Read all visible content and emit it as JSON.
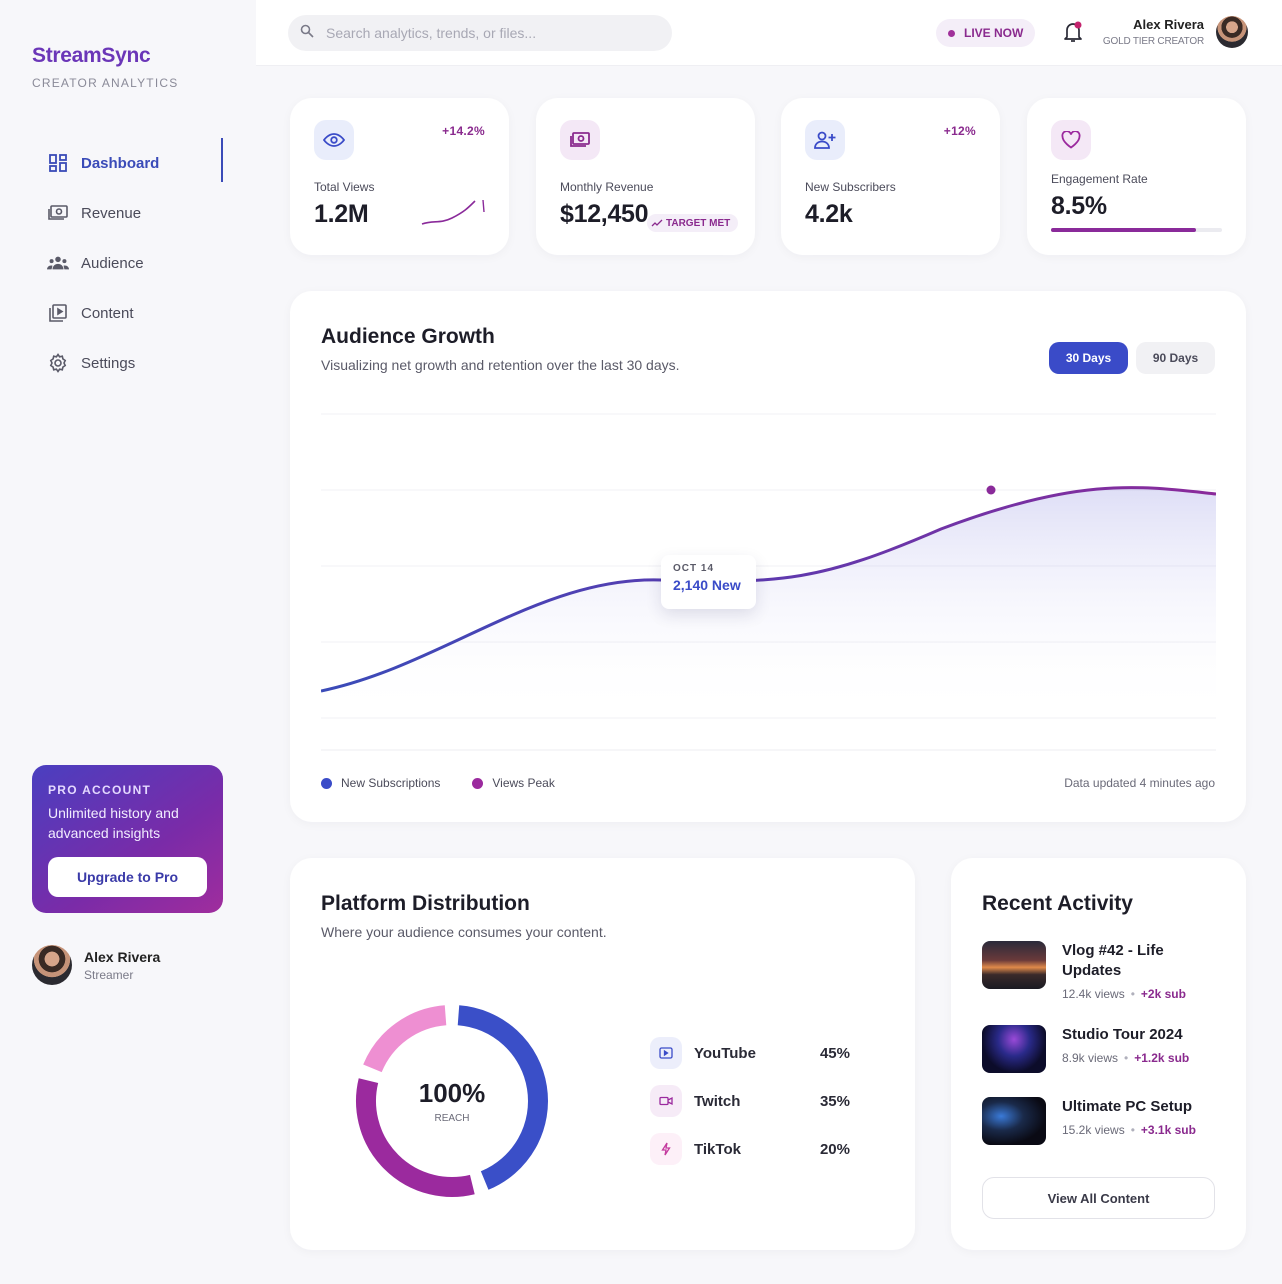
{
  "brand": {
    "name": "StreamSync",
    "tagline": "CREATOR ANALYTICS"
  },
  "sidebar": {
    "items": [
      {
        "label": "Dashboard",
        "icon": "grid-icon",
        "active": true
      },
      {
        "label": "Revenue",
        "icon": "money-icon",
        "active": false
      },
      {
        "label": "Audience",
        "icon": "people-icon",
        "active": false
      },
      {
        "label": "Content",
        "icon": "play-square-icon",
        "active": false
      },
      {
        "label": "Settings",
        "icon": "gear-icon",
        "active": false
      }
    ],
    "pro": {
      "title": "PRO ACCOUNT",
      "description": "Unlimited history and advanced insights",
      "button": "Upgrade to Pro"
    },
    "user": {
      "name": "Alex Rivera",
      "role": "Streamer"
    }
  },
  "header": {
    "search_placeholder": "Search analytics, trends, or files...",
    "live_label": "LIVE NOW",
    "user_name": "Alex Rivera",
    "user_tier": "GOLD TIER CREATOR"
  },
  "stats": [
    {
      "label": "Total Views",
      "value": "1.2M",
      "delta": "+14.2%",
      "icon": "eye-icon"
    },
    {
      "label": "Monthly Revenue",
      "value": "$12,450",
      "badge": "TARGET MET",
      "icon": "money-icon"
    },
    {
      "label": "New Subscribers",
      "value": "4.2k",
      "delta": "+12%",
      "icon": "user-plus-icon"
    },
    {
      "label": "Engagement Rate",
      "value": "8.5%",
      "icon": "heart-icon",
      "progress_fraction": 0.85
    }
  ],
  "growth": {
    "title": "Audience Growth",
    "subtitle": "Visualizing net growth and retention over the last 30 days.",
    "ranges": [
      "30 Days",
      "90 Days"
    ],
    "selected_range": "30 Days",
    "tooltip": {
      "date": "OCT 14",
      "value": "2,140 New"
    },
    "legend": [
      {
        "name": "New Subscriptions",
        "color": "#3a4bc8"
      },
      {
        "name": "Views Peak",
        "color": "#9b2a9e"
      }
    ],
    "updated": "Data updated 4 minutes ago"
  },
  "platform": {
    "title": "Platform Distribution",
    "subtitle": "Where your audience consumes your content.",
    "center_value": "100%",
    "center_label": "REACH",
    "rows": [
      {
        "name": "YouTube",
        "percent": "45%",
        "share": 45,
        "color": "#3a4fc8",
        "icon": "youtube-icon"
      },
      {
        "name": "Twitch",
        "percent": "35%",
        "share": 35,
        "color": "#9b2a9e",
        "icon": "video-camera-icon"
      },
      {
        "name": "TikTok",
        "percent": "20%",
        "share": 20,
        "color": "#ee8fd2",
        "icon": "bolt-icon"
      }
    ]
  },
  "recent": {
    "title": "Recent Activity",
    "items": [
      {
        "title": "Vlog #42 - Life Updates",
        "views": "12.4k views",
        "gain": "+2k sub"
      },
      {
        "title": "Studio Tour 2024",
        "views": "8.9k views",
        "gain": "+1.2k sub"
      },
      {
        "title": "Ultimate PC Setup",
        "views": "15.2k views",
        "gain": "+3.1k sub"
      }
    ],
    "view_all": "View All Content"
  }
}
